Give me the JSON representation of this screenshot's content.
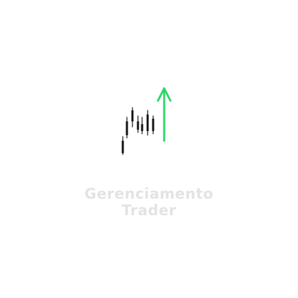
{
  "brand": {
    "name_line1": "Gerenciamento",
    "name_line2": "Trader",
    "text_color": "#e2e4e3",
    "accent_color": "#2ed66a",
    "candle_color": "#111111",
    "icons": {
      "logo": "candlestick-chart-up-arrow-icon"
    }
  }
}
